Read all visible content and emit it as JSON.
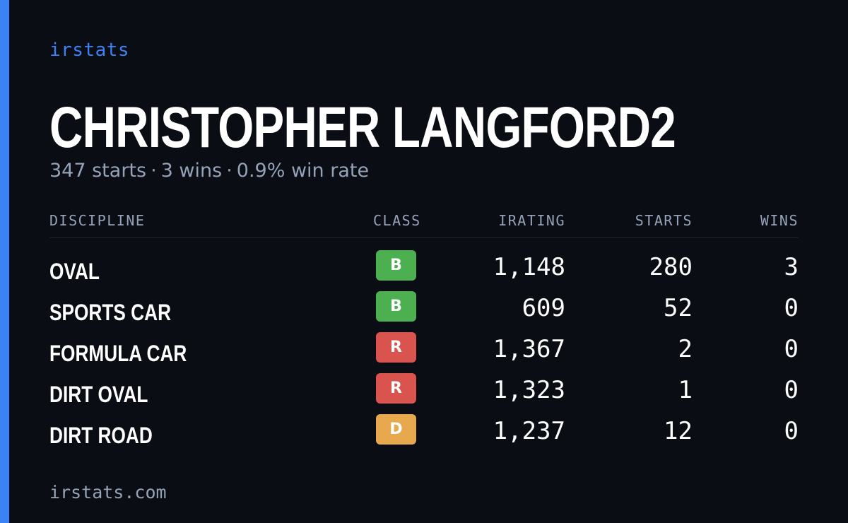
{
  "brand": "irstats",
  "driver": {
    "name": "CHRISTOPHER LANGFORD2"
  },
  "summary": {
    "starts": "347 starts",
    "wins": "3 wins",
    "win_rate": "0.9% win rate",
    "separator": "·"
  },
  "table": {
    "headers": {
      "discipline": "DISCIPLINE",
      "class": "CLASS",
      "irating": "IRATING",
      "starts": "STARTS",
      "wins": "WINS"
    },
    "rows": [
      {
        "discipline": "OVAL",
        "class": "B",
        "class_color": "#4caf50",
        "irating": "1,148",
        "starts": "280",
        "wins": "3"
      },
      {
        "discipline": "SPORTS CAR",
        "class": "B",
        "class_color": "#4caf50",
        "irating": "609",
        "starts": "52",
        "wins": "0"
      },
      {
        "discipline": "FORMULA CAR",
        "class": "R",
        "class_color": "#d9534f",
        "irating": "1,367",
        "starts": "2",
        "wins": "0"
      },
      {
        "discipline": "DIRT OVAL",
        "class": "R",
        "class_color": "#d9534f",
        "irating": "1,323",
        "starts": "1",
        "wins": "0"
      },
      {
        "discipline": "DIRT ROAD",
        "class": "D",
        "class_color": "#e8a94e",
        "irating": "1,237",
        "starts": "12",
        "wins": "0"
      }
    ]
  },
  "footer": {
    "url": "irstats.com"
  },
  "colors": {
    "accent": "#3b82f6",
    "background": "#0b0d14",
    "muted": "#94a3b8",
    "text": "#ffffff"
  }
}
